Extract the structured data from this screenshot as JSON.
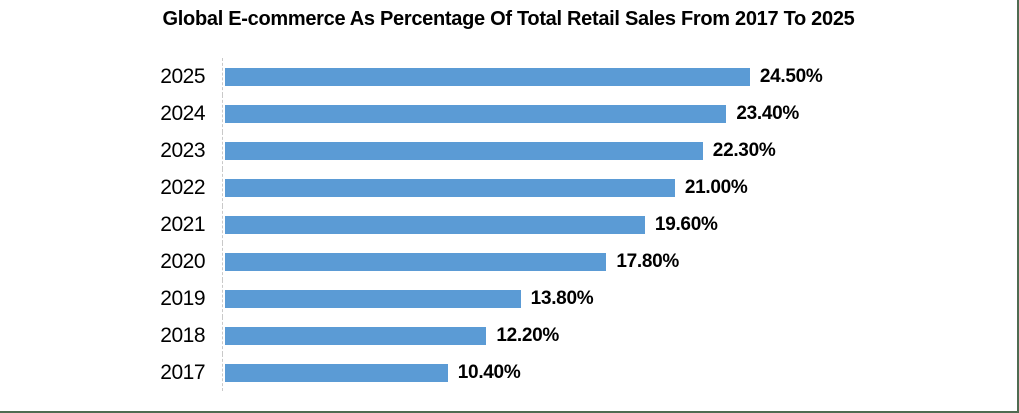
{
  "colors": {
    "bar": "#5b9bd5",
    "frame_border": "#4f6b51",
    "axis_line": "#c9c9c9",
    "text": "#000000",
    "background": "#ffffff"
  },
  "chart_data": {
    "type": "bar",
    "orientation": "horizontal",
    "title": "Global E-commerce As Percentage Of Total Retail Sales From 2017 To 2025",
    "categories": [
      "2025",
      "2024",
      "2023",
      "2022",
      "2021",
      "2020",
      "2019",
      "2018",
      "2017"
    ],
    "values": [
      24.5,
      23.4,
      22.3,
      21.0,
      19.6,
      17.8,
      13.8,
      12.2,
      10.4
    ],
    "labels": [
      "24.50%",
      "23.40%",
      "22.30%",
      "21.00%",
      "19.60%",
      "17.80%",
      "13.80%",
      "12.20%",
      "10.40%"
    ],
    "xlabel": "",
    "ylabel": "",
    "xlim": [
      0,
      36.5
    ],
    "grid": false,
    "legend": false,
    "x_axis_ticks_visible": false,
    "bar_color": "#5b9bd5"
  }
}
